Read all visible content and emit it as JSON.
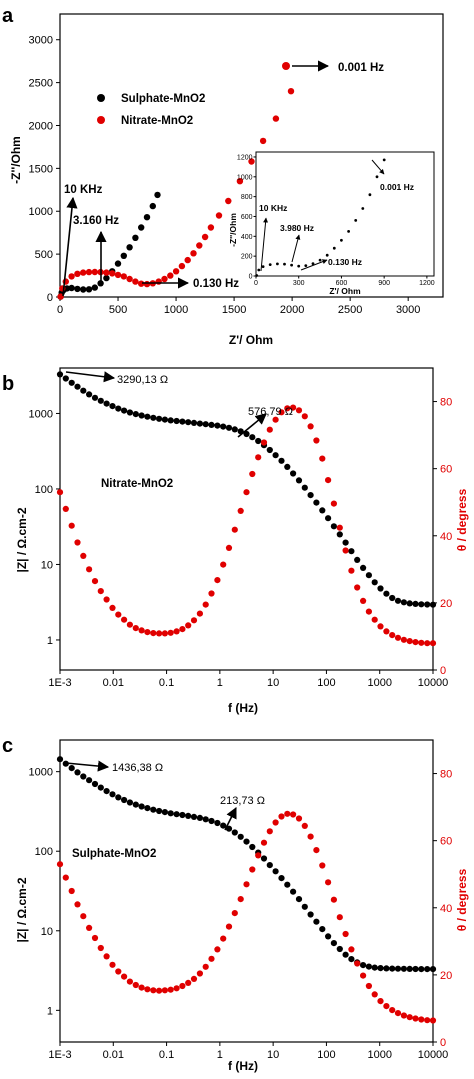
{
  "panels": {
    "a": {
      "label": "a",
      "xlabel": "Z'/ Ohm",
      "ylabel": "-Z''/Ohm",
      "xticks": [
        "0",
        "500",
        "1000",
        "1500",
        "2000",
        "2500",
        "3000"
      ],
      "yticks": [
        "0",
        "500",
        "1000",
        "1500",
        "2000",
        "2500",
        "3000"
      ],
      "legend": [
        "Sulphate-MnO2",
        "Nitrate-MnO2"
      ],
      "annotations": {
        "low_freq": "0.001 Hz",
        "f10k": "10 KHz",
        "f3160": "3.160 Hz",
        "f0130": "0.130 Hz"
      },
      "inset": {
        "xlabel": "Z'/ Ohm",
        "ylabel": "-Z''/Ohm",
        "xticks": [
          "0",
          "300",
          "600",
          "900",
          "1200"
        ],
        "yticks": [
          "0",
          "200",
          "400",
          "600",
          "800",
          "1000",
          "1200"
        ],
        "annotations": {
          "f10k": "10 KHz",
          "f3980": "3.980 Hz",
          "f0130": "0.130 Hz",
          "f0001": "0.001 Hz"
        }
      }
    },
    "b": {
      "label": "b",
      "xlabel": "f (Hz)",
      "ylabel_left": "|Z| / Ω.cm-2",
      "ylabel_right": "θ / degress",
      "xticks": [
        "1E-3",
        "0.01",
        "0.1",
        "1",
        "10",
        "100",
        "1000",
        "10000"
      ],
      "yticks_left": [
        "1",
        "10",
        "100",
        "1000"
      ],
      "yticks_right": [
        "0",
        "20",
        "40",
        "60",
        "80"
      ],
      "sample": "Nitrate-MnO2",
      "annotations": {
        "z_low": "3290,13 Ω",
        "z_mid": "576,79 Ω"
      }
    },
    "c": {
      "label": "c",
      "xlabel": "f (Hz)",
      "ylabel_left": "|Z| / Ω.cm-2",
      "ylabel_right": "θ / degress",
      "xticks": [
        "1E-3",
        "0.01",
        "0.1",
        "1",
        "10",
        "100",
        "1000",
        "10000"
      ],
      "yticks_left": [
        "1",
        "10",
        "100",
        "1000"
      ],
      "yticks_right": [
        "0",
        "20",
        "40",
        "60",
        "80"
      ],
      "sample": "Sulphate-MnO2",
      "annotations": {
        "z_low": "1436,38 Ω",
        "z_mid": "213,73 Ω"
      }
    }
  },
  "colors": {
    "black_series": "#000000",
    "red_series": "#e00000"
  },
  "chart_data": [
    {
      "type": "scatter",
      "title": "",
      "xlabel": "Z'/ Ohm",
      "ylabel": "-Z''/Ohm",
      "xlim": [
        0,
        3300
      ],
      "ylim": [
        0,
        3300
      ],
      "series": [
        {
          "name": "Sulphate-MnO2",
          "points": [
            [
              5,
              5
            ],
            [
              15,
              50
            ],
            [
              30,
              80
            ],
            [
              60,
              100
            ],
            [
              100,
              105
            ],
            [
              150,
              95
            ],
            [
              200,
              88
            ],
            [
              250,
              90
            ],
            [
              300,
              110
            ],
            [
              350,
              160
            ],
            [
              400,
              220
            ],
            [
              450,
              300
            ],
            [
              500,
              390
            ],
            [
              550,
              480
            ],
            [
              600,
              580
            ],
            [
              650,
              690
            ],
            [
              700,
              810
            ],
            [
              750,
              930
            ],
            [
              800,
              1060
            ],
            [
              840,
              1190
            ]
          ]
        },
        {
          "name": "Nitrate-MnO2",
          "points": [
            [
              5,
              5
            ],
            [
              20,
              100
            ],
            [
              50,
              180
            ],
            [
              100,
              240
            ],
            [
              150,
              270
            ],
            [
              200,
              285
            ],
            [
              250,
              290
            ],
            [
              300,
              292
            ],
            [
              350,
              290
            ],
            [
              400,
              285
            ],
            [
              450,
              275
            ],
            [
              500,
              258
            ],
            [
              550,
              240
            ],
            [
              600,
              210
            ],
            [
              650,
              180
            ],
            [
              700,
              155
            ],
            [
              750,
              150
            ],
            [
              800,
              160
            ],
            [
              850,
              180
            ],
            [
              900,
              210
            ],
            [
              950,
              250
            ],
            [
              1000,
              300
            ],
            [
              1050,
              360
            ],
            [
              1100,
              430
            ],
            [
              1150,
              510
            ],
            [
              1200,
              600
            ],
            [
              1250,
              700
            ],
            [
              1300,
              810
            ],
            [
              1370,
              950
            ],
            [
              1450,
              1120
            ],
            [
              1550,
              1350
            ],
            [
              1650,
              1580
            ],
            [
              1750,
              1820
            ],
            [
              1860,
              2080
            ],
            [
              1990,
              2400
            ]
          ]
        }
      ],
      "inset": {
        "xlim": [
          0,
          1250
        ],
        "ylim": [
          0,
          1250
        ],
        "points": [
          [
            5,
            5
          ],
          [
            20,
            60
          ],
          [
            50,
            95
          ],
          [
            100,
            115
          ],
          [
            150,
            122
          ],
          [
            200,
            120
          ],
          [
            250,
            110
          ],
          [
            300,
            100
          ],
          [
            350,
            105
          ],
          [
            400,
            125
          ],
          [
            450,
            160
          ],
          [
            500,
            210
          ],
          [
            550,
            280
          ],
          [
            600,
            360
          ],
          [
            650,
            450
          ],
          [
            700,
            560
          ],
          [
            750,
            680
          ],
          [
            800,
            820
          ],
          [
            850,
            1000
          ],
          [
            900,
            1170
          ]
        ]
      }
    },
    {
      "type": "scatter",
      "title": "",
      "xlabel": "f (Hz)",
      "ylabel": "|Z| / Ω.cm-2",
      "y2label": "θ / degress",
      "xscale": "log",
      "yscale": "log",
      "xlim": [
        0.001,
        10000
      ],
      "ylim": [
        0.4,
        4000
      ],
      "y2lim": [
        0,
        90
      ],
      "series": [
        {
          "name": "|Z|",
          "axis": "left",
          "values": [
            3290,
            2900,
            2550,
            2260,
            2000,
            1790,
            1610,
            1470,
            1350,
            1250,
            1160,
            1090,
            1030,
            980,
            940,
            905,
            875,
            850,
            830,
            810,
            795,
            780,
            765,
            750,
            735,
            720,
            705,
            690,
            670,
            645,
            615,
            580,
            535,
            485,
            432,
            380,
            328,
            280,
            236,
            196,
            160,
            130,
            104,
            83,
            66,
            52,
            41,
            32,
            25,
            19.5,
            15,
            11.5,
            9,
            7.2,
            5.8,
            4.8,
            4.1,
            3.6,
            3.3,
            3.15,
            3.05,
            3,
            2.97,
            2.95,
            2.93
          ]
        },
        {
          "name": "θ",
          "axis": "right",
          "values": [
            53,
            48,
            43,
            38,
            34,
            30,
            26.5,
            23.5,
            21,
            18.5,
            16.5,
            15,
            13.5,
            12.5,
            11.8,
            11.3,
            11,
            10.9,
            10.9,
            11.1,
            11.5,
            12.2,
            13.3,
            14.8,
            16.8,
            19.5,
            22.8,
            26.8,
            31.4,
            36.4,
            41.8,
            47.4,
            53,
            58.4,
            63.4,
            67.8,
            71.6,
            74.6,
            76.8,
            78,
            78.2,
            77.4,
            75.6,
            72.6,
            68.4,
            63,
            56.6,
            49.6,
            42.4,
            35.6,
            29.6,
            24.6,
            20.6,
            17.4,
            15,
            13,
            11.5,
            10.4,
            9.6,
            9,
            8.6,
            8.3,
            8.1,
            8,
            8
          ]
        }
      ]
    },
    {
      "type": "scatter",
      "title": "",
      "xlabel": "f (Hz)",
      "ylabel": "|Z| / Ω.cm-2",
      "y2label": "θ / degress",
      "xscale": "log",
      "yscale": "log",
      "xlim": [
        0.001,
        10000
      ],
      "ylim": [
        0.4,
        2500
      ],
      "y2lim": [
        0,
        90
      ],
      "series": [
        {
          "name": "|Z|",
          "axis": "left",
          "values": [
            1436,
            1260,
            1110,
            980,
            870,
            780,
            700,
            630,
            570,
            520,
            475,
            440,
            410,
            385,
            365,
            348,
            333,
            320,
            310,
            300,
            292,
            285,
            278,
            270,
            262,
            252,
            240,
            226,
            210,
            192,
            172,
            152,
            132,
            113,
            96,
            81,
            67,
            56,
            46,
            38,
            31,
            25,
            20,
            16,
            13,
            10.5,
            8.5,
            7,
            5.9,
            5,
            4.4,
            4,
            3.7,
            3.55,
            3.45,
            3.4,
            3.37,
            3.35,
            3.34,
            3.33,
            3.32,
            3.31,
            3.3,
            3.3,
            3.3
          ]
        },
        {
          "name": "θ",
          "axis": "right",
          "values": [
            53,
            49,
            45,
            41,
            37.5,
            34,
            31,
            28,
            25.5,
            23,
            21,
            19.5,
            18,
            17,
            16.2,
            15.7,
            15.4,
            15.3,
            15.4,
            15.6,
            16,
            16.7,
            17.6,
            18.8,
            20.4,
            22.4,
            24.8,
            27.6,
            30.8,
            34.4,
            38.4,
            42.6,
            47,
            51.4,
            55.6,
            59.4,
            62.8,
            65.4,
            67.2,
            68,
            67.8,
            66.6,
            64.4,
            61.2,
            57.2,
            52.6,
            47.6,
            42.4,
            37.2,
            32.2,
            27.6,
            23.4,
            19.8,
            16.7,
            14.2,
            12.2,
            10.7,
            9.5,
            8.6,
            7.9,
            7.4,
            7,
            6.7,
            6.5,
            6.4
          ]
        }
      ]
    }
  ]
}
